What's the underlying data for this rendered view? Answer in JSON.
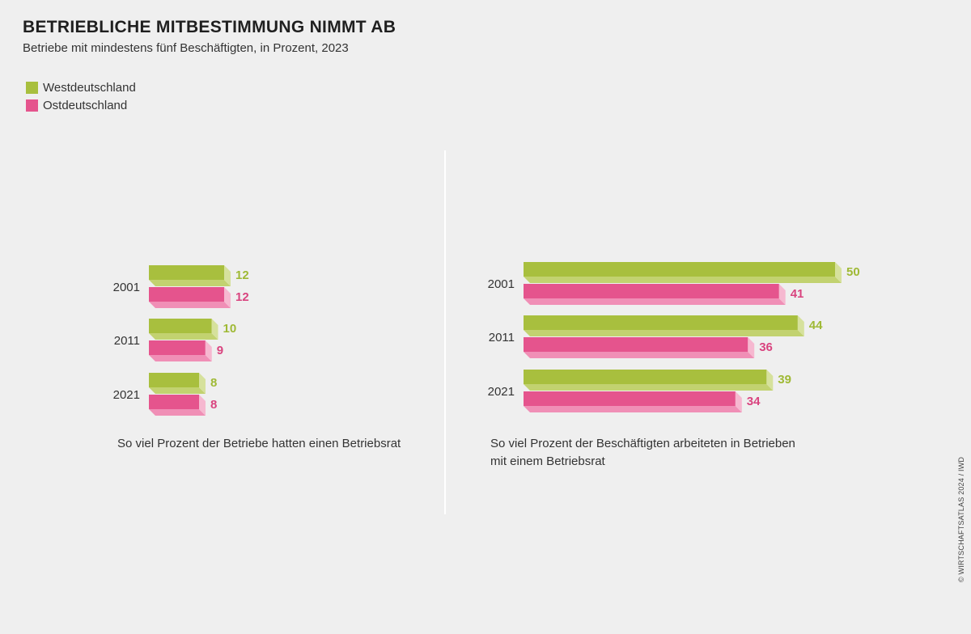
{
  "header": {
    "title": "BETRIEBLICHE MITBESTIMMUNG NIMMT AB",
    "subtitle": "Betriebe mit mindestens fünf Beschäftigten, in Prozent, 2023"
  },
  "legend": [
    {
      "label": "Westdeutschland",
      "color": "#a8bf3e"
    },
    {
      "label": "Ostdeutschland",
      "color": "#e5548d"
    }
  ],
  "colors": {
    "west_front": "#a8bf3e",
    "west_bottom": "#c2d270",
    "west_side": "#d6e19c",
    "west_label": "#9fb935",
    "east_front": "#e5548d",
    "east_bottom": "#f08fb6",
    "east_side": "#f6b8d0",
    "east_label": "#d9447f"
  },
  "chart_data": [
    {
      "type": "bar",
      "orientation": "horizontal",
      "categories": [
        "2001",
        "2011",
        "2021"
      ],
      "series": [
        {
          "name": "Westdeutschland",
          "values": [
            12,
            10,
            8
          ]
        },
        {
          "name": "Ostdeutschland",
          "values": [
            12,
            9,
            8
          ]
        }
      ],
      "caption": "So viel Prozent der Betriebe hatten einen Betriebsrat"
    },
    {
      "type": "bar",
      "orientation": "horizontal",
      "categories": [
        "2001",
        "2011",
        "2021"
      ],
      "series": [
        {
          "name": "Westdeutschland",
          "values": [
            50,
            44,
            39
          ]
        },
        {
          "name": "Ostdeutschland",
          "values": [
            41,
            36,
            34
          ]
        }
      ],
      "caption": "So viel Prozent der Beschäftigten arbeiteten in Betrieben mit einem Betriebsrat"
    }
  ],
  "credit": "© WIRTSCHAFTSATLAS 2024 / IWD"
}
